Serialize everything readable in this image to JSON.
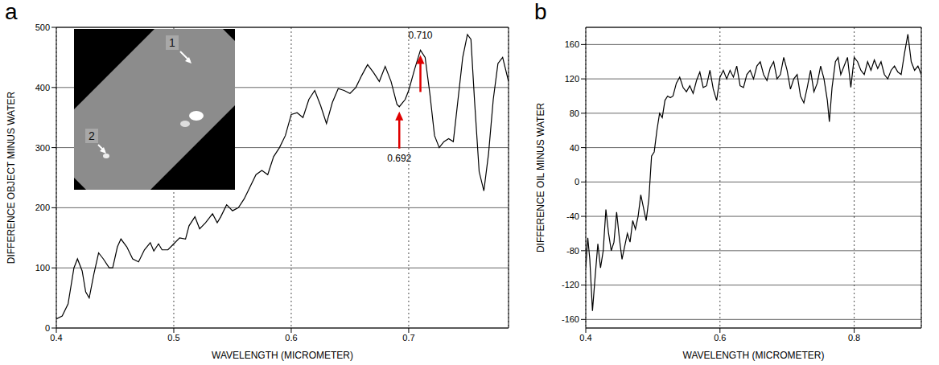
{
  "chart_data": [
    {
      "type": "line",
      "panel": "a",
      "xlabel": "WAVELENGTH (MICROMETER)",
      "ylabel": "DIFFERENCE OBJECT MINUS WATER",
      "x": [
        0.4,
        0.405,
        0.41,
        0.415,
        0.418,
        0.422,
        0.425,
        0.428,
        0.432,
        0.436,
        0.44,
        0.445,
        0.448,
        0.452,
        0.455,
        0.46,
        0.465,
        0.47,
        0.475,
        0.48,
        0.483,
        0.487,
        0.49,
        0.495,
        0.5,
        0.505,
        0.51,
        0.513,
        0.518,
        0.522,
        0.527,
        0.533,
        0.537,
        0.54,
        0.545,
        0.55,
        0.555,
        0.56,
        0.565,
        0.57,
        0.575,
        0.58,
        0.585,
        0.59,
        0.595,
        0.6,
        0.605,
        0.61,
        0.615,
        0.62,
        0.625,
        0.63,
        0.635,
        0.64,
        0.645,
        0.65,
        0.655,
        0.66,
        0.665,
        0.67,
        0.675,
        0.68,
        0.685,
        0.69,
        0.692,
        0.697,
        0.7,
        0.705,
        0.71,
        0.714,
        0.718,
        0.722,
        0.726,
        0.73,
        0.734,
        0.738,
        0.742,
        0.746,
        0.75,
        0.753,
        0.756,
        0.76,
        0.764,
        0.768,
        0.772,
        0.776,
        0.78,
        0.785
      ],
      "values": [
        15,
        20,
        40,
        100,
        115,
        95,
        60,
        50,
        90,
        125,
        115,
        100,
        100,
        135,
        148,
        135,
        115,
        110,
        130,
        142,
        128,
        140,
        130,
        130,
        140,
        150,
        148,
        170,
        185,
        165,
        175,
        190,
        175,
        185,
        205,
        195,
        200,
        215,
        235,
        255,
        262,
        255,
        285,
        300,
        320,
        355,
        358,
        350,
        380,
        395,
        370,
        340,
        375,
        398,
        395,
        390,
        400,
        420,
        438,
        425,
        410,
        435,
        410,
        372,
        368,
        380,
        395,
        430,
        462,
        450,
        390,
        320,
        300,
        310,
        315,
        310,
        380,
        450,
        488,
        480,
        380,
        260,
        228,
        290,
        380,
        440,
        450,
        410
      ],
      "color": "#000000",
      "xlim": [
        0.4,
        0.785
      ],
      "xticks": [
        0.4,
        0.5,
        0.6,
        0.7
      ],
      "ylim": [
        0,
        500
      ],
      "yticks": [
        0,
        100,
        200,
        300,
        400,
        500
      ],
      "grid": true,
      "annotations": [
        {
          "text": "0.710",
          "x": 0.71,
          "y": 462
        },
        {
          "text": "0.692",
          "x": 0.692,
          "y": 368
        }
      ],
      "inset_labels": [
        "1",
        "2"
      ]
    },
    {
      "type": "line",
      "panel": "b",
      "xlabel": "WAVELENGTH (MICROMETER)",
      "ylabel": "DIFFERENCE OIL MINUS WATER",
      "x": [
        0.4,
        0.403,
        0.406,
        0.41,
        0.414,
        0.418,
        0.422,
        0.426,
        0.43,
        0.434,
        0.438,
        0.442,
        0.446,
        0.45,
        0.454,
        0.458,
        0.462,
        0.466,
        0.47,
        0.474,
        0.478,
        0.482,
        0.486,
        0.49,
        0.494,
        0.498,
        0.502,
        0.506,
        0.51,
        0.514,
        0.518,
        0.522,
        0.526,
        0.53,
        0.535,
        0.54,
        0.545,
        0.55,
        0.555,
        0.56,
        0.565,
        0.57,
        0.575,
        0.58,
        0.585,
        0.59,
        0.595,
        0.6,
        0.605,
        0.61,
        0.615,
        0.62,
        0.625,
        0.63,
        0.635,
        0.64,
        0.645,
        0.65,
        0.655,
        0.66,
        0.665,
        0.67,
        0.675,
        0.68,
        0.685,
        0.69,
        0.695,
        0.7,
        0.705,
        0.71,
        0.715,
        0.72,
        0.725,
        0.73,
        0.735,
        0.74,
        0.745,
        0.75,
        0.755,
        0.76,
        0.763,
        0.767,
        0.772,
        0.776,
        0.78,
        0.785,
        0.79,
        0.795,
        0.8,
        0.805,
        0.81,
        0.815,
        0.82,
        0.825,
        0.83,
        0.835,
        0.84,
        0.845,
        0.85,
        0.855,
        0.86,
        0.865,
        0.87,
        0.875,
        0.88,
        0.885,
        0.89,
        0.895,
        0.9
      ],
      "values": [
        -100,
        -65,
        -90,
        -150,
        -110,
        -72,
        -100,
        -80,
        -32,
        -60,
        -80,
        -70,
        -35,
        -65,
        -90,
        -75,
        -60,
        -70,
        -45,
        -55,
        -40,
        -15,
        -30,
        -45,
        -20,
        30,
        35,
        60,
        80,
        75,
        95,
        100,
        98,
        100,
        115,
        122,
        110,
        105,
        112,
        103,
        118,
        128,
        110,
        112,
        130,
        108,
        95,
        122,
        130,
        120,
        130,
        122,
        135,
        112,
        110,
        125,
        130,
        120,
        135,
        140,
        125,
        118,
        133,
        140,
        120,
        125,
        145,
        130,
        108,
        120,
        125,
        100,
        92,
        110,
        130,
        105,
        115,
        135,
        120,
        95,
        70,
        110,
        140,
        145,
        125,
        135,
        145,
        110,
        145,
        140,
        130,
        125,
        140,
        130,
        142,
        132,
        140,
        125,
        120,
        130,
        135,
        128,
        125,
        150,
        172,
        140,
        130,
        135,
        125
      ],
      "color": "#000000",
      "xlim": [
        0.4,
        0.9
      ],
      "xticks": [
        0.4,
        0.6,
        0.8
      ],
      "ylim": [
        -170,
        180
      ],
      "yticks": [
        -160,
        -120,
        -80,
        -40,
        0,
        40,
        80,
        120,
        160
      ],
      "grid": true
    }
  ]
}
